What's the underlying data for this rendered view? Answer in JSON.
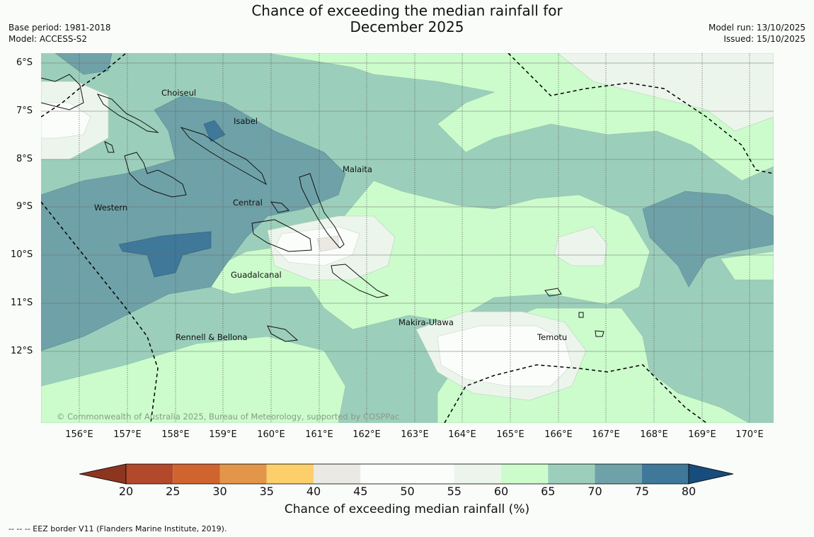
{
  "header": {
    "title_line1": "Chance of exceeding the median rainfall for",
    "title_line2": "December 2025",
    "base_period": "Base period: 1981-2018",
    "model": "Model: ACCESS-S2",
    "model_run": "Model run: 13/10/2025",
    "issued": "Issued: 15/10/2025"
  },
  "map": {
    "lat_labels": [
      "6°S",
      "7°S",
      "8°S",
      "9°S",
      "10°S",
      "11°S",
      "12°S"
    ],
    "lon_labels": [
      "156°E",
      "157°E",
      "158°E",
      "159°E",
      "160°E",
      "161°E",
      "162°E",
      "163°E",
      "164°E",
      "165°E",
      "166°E",
      "167°E",
      "168°E",
      "169°E",
      "170°E"
    ],
    "places": {
      "choiseul": "Choiseul",
      "isabel": "Isabel",
      "malaita": "Malaita",
      "western": "Western",
      "central": "Central",
      "guadalcanal": "Guadalcanal",
      "makira": "Makira-Ulawa",
      "temotu": "Temotu",
      "rennell": "Rennell & Bellona"
    },
    "copyright": "© Commonwealth of Australia 2025, Bureau of Meteorology, supported by COSPPac"
  },
  "colorbar": {
    "ticks": [
      "20",
      "25",
      "30",
      "35",
      "40",
      "45",
      "50",
      "55",
      "60",
      "65",
      "70",
      "75",
      "80"
    ],
    "colors": [
      "#8e3520",
      "#b3492b",
      "#d0642f",
      "#e3954a",
      "#fdcf6a",
      "#ebe9e4",
      "#fbfdfb",
      "#fbfdfb",
      "#ecf5ec",
      "#ccfccc",
      "#9ccfbb",
      "#6fa2a8",
      "#3f7899",
      "#174d7c"
    ],
    "label": "Chance of exceeding median rainfall (%)"
  },
  "footer": {
    "eez": "--  --  -- EEZ border V11 (Flanders Marine Institute, 2019)."
  }
}
